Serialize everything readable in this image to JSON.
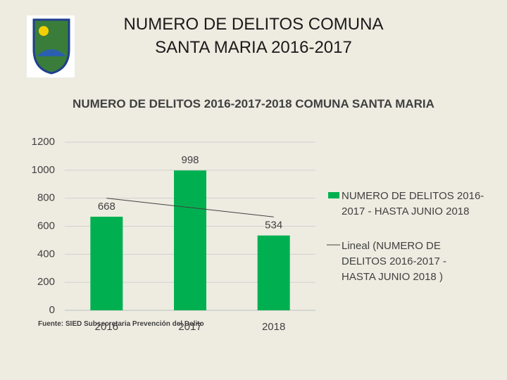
{
  "slide_title": "NUMERO DE DELITOS COMUNA SANTA MARIA 2016-2017",
  "chart_data": {
    "type": "bar",
    "title": "NUMERO  DE DELITOS 2016-2017-2018 COMUNA SANTA MARIA",
    "categories": [
      "2016",
      "2017",
      "2018"
    ],
    "series": [
      {
        "name": "NUMERO  DE DELITOS 2016-2017 - HASTA JUNIO 2018",
        "color": "#00b050",
        "values": [
          668,
          998,
          534
        ]
      }
    ],
    "trendline": {
      "name": "Lineal (NUMERO  DE DELITOS 2016-2017 - HASTA JUNIO 2018 )",
      "type": "linear",
      "color": "#404040"
    },
    "ylim": [
      0,
      1200
    ],
    "yticks": [
      0,
      200,
      400,
      600,
      800,
      1000,
      1200
    ],
    "grid": true,
    "legend": "right",
    "source": "Fuente: SIED Subsecretaria Prevención del Delito"
  }
}
